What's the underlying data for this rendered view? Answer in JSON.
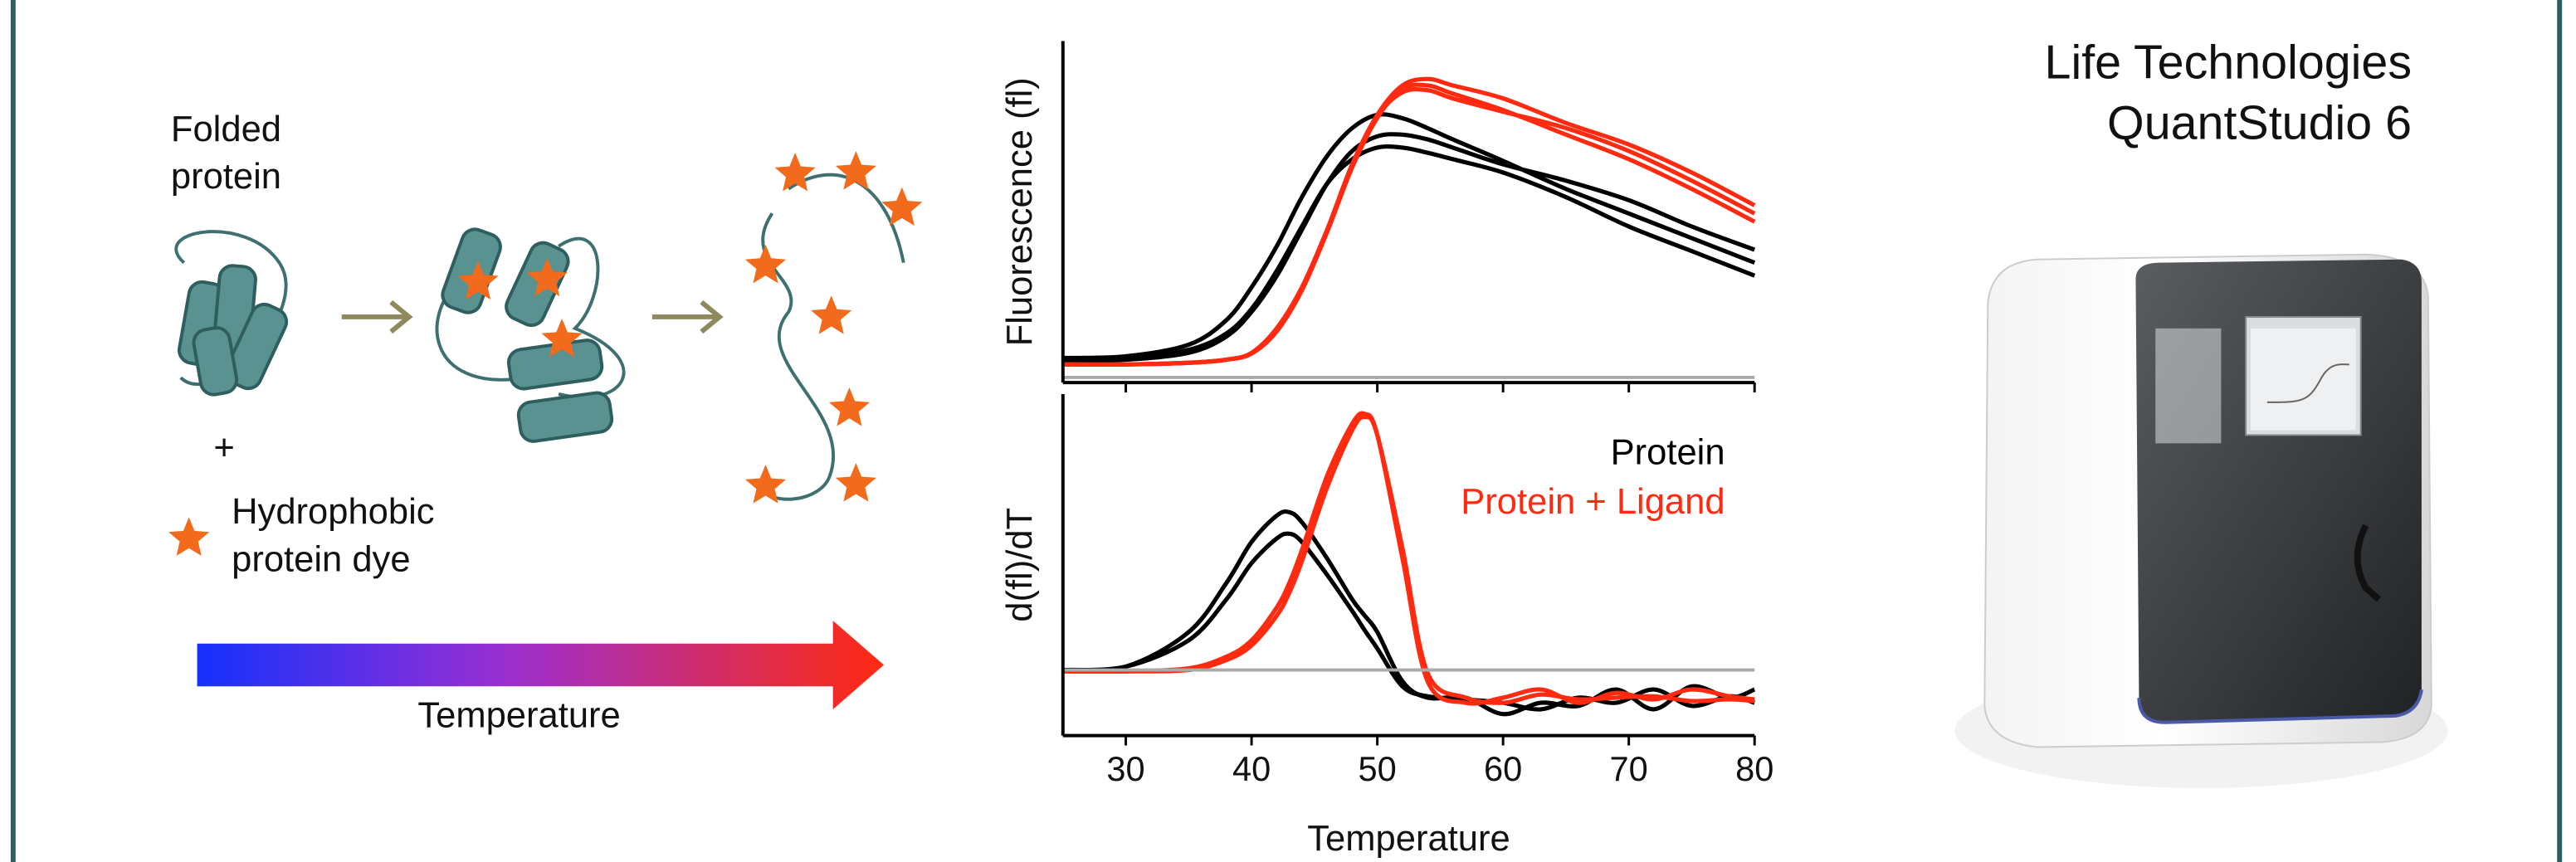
{
  "diagram": {
    "folded_label": [
      "Folded",
      "protein"
    ],
    "plus": "+",
    "dye_label": [
      "Hydrophobic",
      "protein dye"
    ],
    "arrow_label": "Temperature"
  },
  "instrument": {
    "title": [
      "Life Technologies",
      "QuantStudio 6"
    ]
  },
  "chart_data": [
    {
      "type": "line",
      "ylabel": "Fluorescence (fl)",
      "xlim": [
        25,
        80
      ],
      "ylim": [
        0,
        1
      ],
      "x": [
        25,
        30,
        35,
        38,
        40,
        42,
        44,
        46,
        48,
        50,
        52,
        54,
        56,
        60,
        65,
        70,
        75,
        80
      ],
      "series": [
        {
          "color": "#000000",
          "values": [
            0.072,
            0.077,
            0.111,
            0.183,
            0.279,
            0.399,
            0.543,
            0.663,
            0.745,
            0.784,
            0.774,
            0.745,
            0.712,
            0.649,
            0.567,
            0.495,
            0.423,
            0.351
          ]
        },
        {
          "color": "#000000",
          "values": [
            0.062,
            0.067,
            0.087,
            0.135,
            0.207,
            0.312,
            0.447,
            0.582,
            0.678,
            0.721,
            0.726,
            0.712,
            0.688,
            0.639,
            0.591,
            0.534,
            0.457,
            0.389
          ]
        },
        {
          "color": "#000000",
          "values": [
            0.067,
            0.072,
            0.096,
            0.144,
            0.216,
            0.327,
            0.457,
            0.582,
            0.654,
            0.688,
            0.688,
            0.673,
            0.654,
            0.615,
            0.543,
            0.457,
            0.385,
            0.313
          ]
        },
        {
          "color": "#ff2a10",
          "values": [
            0.053,
            0.053,
            0.058,
            0.067,
            0.087,
            0.159,
            0.279,
            0.447,
            0.639,
            0.784,
            0.87,
            0.889,
            0.87,
            0.832,
            0.76,
            0.697,
            0.615,
            0.519
          ]
        },
        {
          "color": "#ff2a10",
          "values": [
            0.053,
            0.053,
            0.058,
            0.067,
            0.085,
            0.15,
            0.27,
            0.44,
            0.63,
            0.775,
            0.86,
            0.87,
            0.846,
            0.798,
            0.726,
            0.654,
            0.567,
            0.471
          ]
        },
        {
          "color": "#ff2a10",
          "values": [
            0.053,
            0.053,
            0.058,
            0.067,
            0.086,
            0.155,
            0.275,
            0.443,
            0.635,
            0.78,
            0.85,
            0.856,
            0.832,
            0.793,
            0.745,
            0.678,
            0.591,
            0.495
          ]
        },
        {
          "color": "#aaaaaa",
          "values": [
            0.015,
            0.015,
            0.015,
            0.015,
            0.015,
            0.015,
            0.015,
            0.015,
            0.015,
            0.015,
            0.015,
            0.015,
            0.015,
            0.015,
            0.015,
            0.015,
            0.015,
            0.015
          ]
        }
      ]
    },
    {
      "type": "line",
      "xlabel": "Temperature",
      "ylabel": "d(fl)/dT",
      "xlim": [
        25,
        80
      ],
      "ylim": [
        0,
        1
      ],
      "xticks": [
        30,
        40,
        50,
        60,
        70,
        80
      ],
      "x": [
        25,
        30,
        35,
        38,
        40,
        42,
        43,
        44,
        46,
        48,
        49,
        50,
        52,
        54,
        57,
        60,
        63,
        66,
        69,
        72,
        75,
        78,
        80
      ],
      "series": [
        {
          "name": "Protein",
          "color": "#000000",
          "values": [
            0.192,
            0.202,
            0.303,
            0.447,
            0.567,
            0.644,
            0.654,
            0.625,
            0.519,
            0.399,
            0.351,
            0.303,
            0.159,
            0.111,
            0.111,
            0.063,
            0.096,
            0.087,
            0.135,
            0.077,
            0.144,
            0.111,
            0.135
          ]
        },
        {
          "color": "#000000",
          "values": [
            0.192,
            0.202,
            0.279,
            0.399,
            0.505,
            0.577,
            0.591,
            0.567,
            0.471,
            0.365,
            0.308,
            0.255,
            0.144,
            0.115,
            0.106,
            0.096,
            0.077,
            0.111,
            0.096,
            0.135,
            0.087,
            0.115,
            0.096
          ]
        },
        {
          "name": "Protein + Ligand",
          "color": "#ff2a10",
          "values": [
            0.188,
            0.188,
            0.197,
            0.231,
            0.279,
            0.375,
            0.447,
            0.543,
            0.76,
            0.913,
            0.942,
            0.88,
            0.519,
            0.159,
            0.096,
            0.111,
            0.135,
            0.096,
            0.125,
            0.106,
            0.135,
            0.115,
            0.106
          ]
        },
        {
          "color": "#ff2a10",
          "values": [
            0.188,
            0.188,
            0.192,
            0.221,
            0.264,
            0.351,
            0.418,
            0.51,
            0.726,
            0.894,
            0.933,
            0.88,
            0.548,
            0.183,
            0.111,
            0.096,
            0.12,
            0.106,
            0.111,
            0.115,
            0.101,
            0.106,
            0.101
          ]
        },
        {
          "color": "#aaaaaa",
          "values": [
            0.192,
            0.192,
            0.192,
            0.192,
            0.192,
            0.192,
            0.192,
            0.192,
            0.192,
            0.192,
            0.192,
            0.192,
            0.192,
            0.192,
            0.192,
            0.192,
            0.192,
            0.192,
            0.192,
            0.192,
            0.192,
            0.192,
            0.192
          ]
        }
      ],
      "legend": "upper right"
    }
  ]
}
